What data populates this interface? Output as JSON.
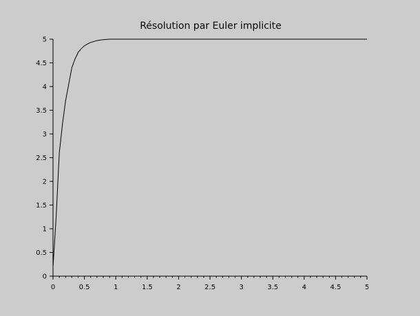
{
  "chart_data": {
    "type": "line",
    "title": "Résolution par Euler implicite",
    "xlabel": "",
    "ylabel": "",
    "xlim": [
      0,
      5
    ],
    "ylim": [
      0,
      5
    ],
    "grid": false,
    "x_ticks": [
      "0",
      "0.5",
      "1",
      "1.5",
      "2",
      "2.5",
      "3",
      "3.5",
      "4",
      "4.5",
      "5"
    ],
    "y_ticks": [
      "0",
      "0.5",
      "1",
      "1.5",
      "2",
      "2.5",
      "3",
      "3.5",
      "4",
      "4.5",
      "5"
    ],
    "series": [
      {
        "color": "#000000",
        "x": [
          0,
          0.05,
          0.1,
          0.15,
          0.2,
          0.25,
          0.3,
          0.35,
          0.4,
          0.45,
          0.5,
          0.55,
          0.6,
          0.65,
          0.7,
          0.75,
          0.8,
          0.85,
          0.9,
          0.95,
          1.0,
          1.5,
          2.0,
          2.5,
          3.0,
          3.5,
          4.0,
          4.5,
          5.0
        ],
        "y": [
          0.2,
          1.25,
          2.6,
          3.2,
          3.7,
          4.05,
          4.4,
          4.58,
          4.72,
          4.8,
          4.86,
          4.9,
          4.93,
          4.95,
          4.97,
          4.98,
          4.99,
          4.995,
          5.0,
          5.0,
          5.0,
          5.0,
          5.0,
          5.0,
          5.0,
          5.0,
          5.0,
          5.0,
          5.0
        ]
      }
    ]
  }
}
